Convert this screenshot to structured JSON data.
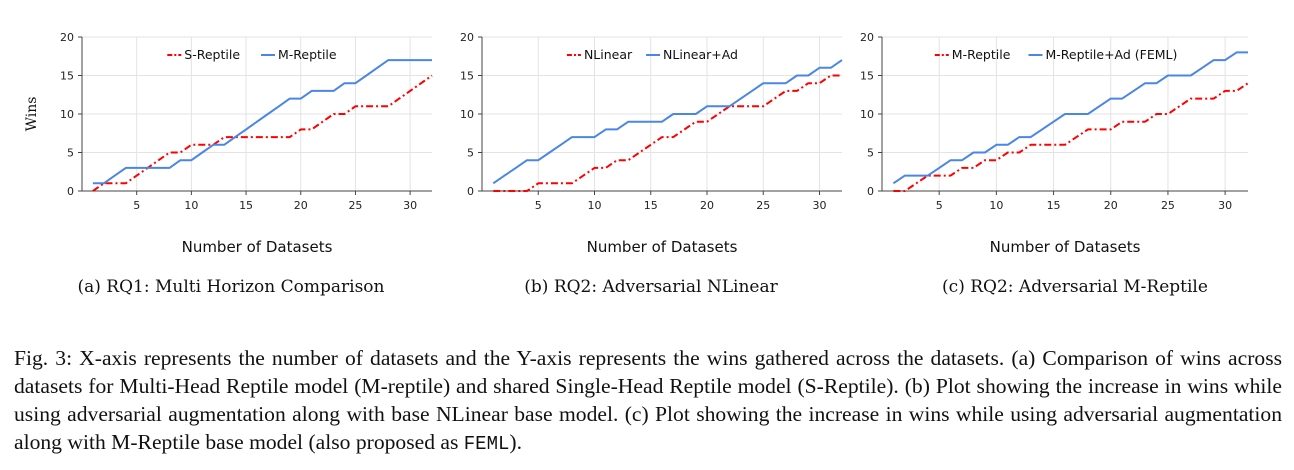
{
  "chart_data": [
    {
      "type": "line",
      "subcaption": "(a) RQ1: Multi Horizon Comparison",
      "xlabel": "Number of Datasets",
      "ylabel": "Wins",
      "xticks": [
        5,
        10,
        15,
        20,
        25,
        30
      ],
      "yticks": [
        0,
        5,
        10,
        15,
        20
      ],
      "xlim": [
        0,
        32
      ],
      "ylim": [
        0,
        20
      ],
      "grid": true,
      "legend_position": "top-center",
      "x": [
        1,
        2,
        3,
        4,
        5,
        6,
        7,
        8,
        9,
        10,
        11,
        12,
        13,
        14,
        15,
        16,
        17,
        18,
        19,
        20,
        21,
        22,
        23,
        24,
        25,
        26,
        27,
        28,
        29,
        30,
        31,
        32
      ],
      "series": [
        {
          "name": "S-Reptile",
          "color": "#ff0000",
          "style": "dashdot",
          "values": [
            0,
            1,
            1,
            1,
            2,
            3,
            4,
            5,
            5,
            6,
            6,
            6,
            7,
            7,
            7,
            7,
            7,
            7,
            7,
            8,
            8,
            9,
            10,
            10,
            11,
            11,
            11,
            11,
            12,
            13,
            14,
            15
          ]
        },
        {
          "name": "M-Reptile",
          "color": "#4a86e8",
          "style": "solid",
          "values": [
            1,
            1,
            2,
            3,
            3,
            3,
            3,
            3,
            4,
            4,
            5,
            6,
            6,
            7,
            8,
            9,
            10,
            11,
            12,
            12,
            13,
            13,
            13,
            14,
            14,
            15,
            16,
            17,
            17,
            17,
            17,
            17
          ]
        }
      ]
    },
    {
      "type": "line",
      "subcaption": "(b) RQ2: Adversarial NLinear",
      "xlabel": "Number of Datasets",
      "ylabel": "",
      "xticks": [
        5,
        10,
        15,
        20,
        25,
        30
      ],
      "yticks": [
        0,
        5,
        10,
        15,
        20
      ],
      "xlim": [
        0,
        32
      ],
      "ylim": [
        0,
        20
      ],
      "grid": true,
      "legend_position": "top-center",
      "x": [
        1,
        2,
        3,
        4,
        5,
        6,
        7,
        8,
        9,
        10,
        11,
        12,
        13,
        14,
        15,
        16,
        17,
        18,
        19,
        20,
        21,
        22,
        23,
        24,
        25,
        26,
        27,
        28,
        29,
        30,
        31,
        32
      ],
      "series": [
        {
          "name": "NLinear",
          "color": "#ff0000",
          "style": "dashdot",
          "values": [
            0,
            0,
            0,
            0,
            1,
            1,
            1,
            1,
            2,
            3,
            3,
            4,
            4,
            5,
            6,
            7,
            7,
            8,
            9,
            9,
            10,
            11,
            11,
            11,
            11,
            12,
            13,
            13,
            14,
            14,
            15,
            15
          ]
        },
        {
          "name": "NLinear+Ad",
          "color": "#4a86e8",
          "style": "solid",
          "values": [
            1,
            2,
            3,
            4,
            4,
            5,
            6,
            7,
            7,
            7,
            8,
            8,
            9,
            9,
            9,
            9,
            10,
            10,
            10,
            11,
            11,
            11,
            12,
            13,
            14,
            14,
            14,
            15,
            15,
            16,
            16,
            17
          ]
        }
      ]
    },
    {
      "type": "line",
      "subcaption": "(c) RQ2: Adversarial M-Reptile",
      "xlabel": "Number of Datasets",
      "ylabel": "",
      "xticks": [
        5,
        10,
        15,
        20,
        25,
        30
      ],
      "yticks": [
        0,
        5,
        10,
        15,
        20
      ],
      "xlim": [
        0,
        32
      ],
      "ylim": [
        0,
        20
      ],
      "grid": true,
      "legend_position": "top-center",
      "x": [
        1,
        2,
        3,
        4,
        5,
        6,
        7,
        8,
        9,
        10,
        11,
        12,
        13,
        14,
        15,
        16,
        17,
        18,
        19,
        20,
        21,
        22,
        23,
        24,
        25,
        26,
        27,
        28,
        29,
        30,
        31,
        32
      ],
      "series": [
        {
          "name": "M-Reptile",
          "color": "#ff0000",
          "style": "dashdot",
          "values": [
            0,
            0,
            1,
            2,
            2,
            2,
            3,
            3,
            4,
            4,
            5,
            5,
            6,
            6,
            6,
            6,
            7,
            8,
            8,
            8,
            9,
            9,
            9,
            10,
            10,
            11,
            12,
            12,
            12,
            13,
            13,
            14
          ]
        },
        {
          "name": "M-Reptile+Ad (FEML)",
          "color": "#4a86e8",
          "style": "solid",
          "values": [
            1,
            2,
            2,
            2,
            3,
            4,
            4,
            5,
            5,
            6,
            6,
            7,
            7,
            8,
            9,
            10,
            10,
            10,
            11,
            12,
            12,
            13,
            14,
            14,
            15,
            15,
            15,
            16,
            17,
            17,
            18,
            18
          ]
        }
      ]
    }
  ],
  "caption": {
    "text": "Fig. 3: X-axis represents the number of datasets and the Y-axis represents the wins gathered across the datasets. (a) Comparison of wins across datasets for Multi-Head Reptile model (M-reptile) and shared Single-Head Reptile model (S-Reptile). (b) Plot showing the increase in wins while using adversarial augmentation along with base NLinear base model. (c) Plot showing the increase in wins while using adversarial augmentation along with M-Reptile base model (also proposed as ",
    "code": "FEML",
    "end": ")."
  }
}
